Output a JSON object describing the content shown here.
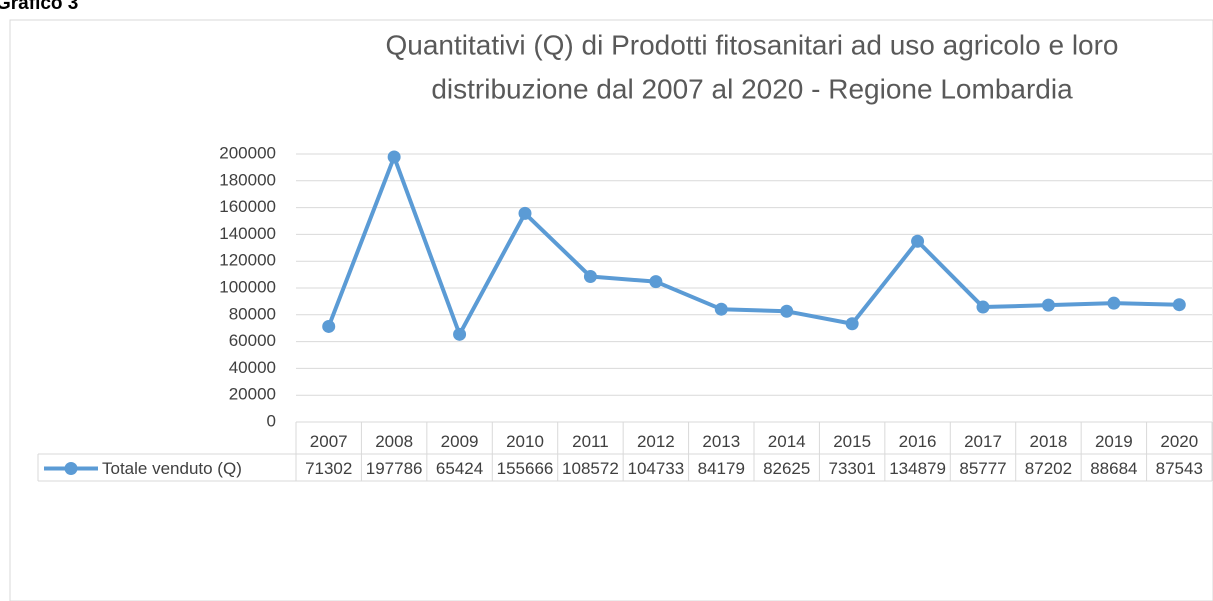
{
  "chart_data": {
    "type": "line",
    "caption": "Grafico 3",
    "title": [
      "Quantitativi (Q) di Prodotti fitosanitari ad uso agricolo e loro",
      "distribuzione  dal 2007 al 2020 - Regione Lombardia"
    ],
    "categories": [
      "2007",
      "2008",
      "2009",
      "2010",
      "2011",
      "2012",
      "2013",
      "2014",
      "2015",
      "2016",
      "2017",
      "2018",
      "2019",
      "2020"
    ],
    "series": [
      {
        "name": "Totale venduto (Q)",
        "color": "#5b9bd5",
        "values": [
          71302,
          197786,
          65424,
          155666,
          108572,
          104733,
          84179,
          82625,
          73301,
          134879,
          85777,
          87202,
          88684,
          87543
        ]
      }
    ],
    "ylim": [
      0,
      200000
    ],
    "yticks": [
      0,
      20000,
      40000,
      60000,
      80000,
      100000,
      120000,
      140000,
      160000,
      180000,
      200000
    ],
    "grid": true,
    "data_table": true
  }
}
